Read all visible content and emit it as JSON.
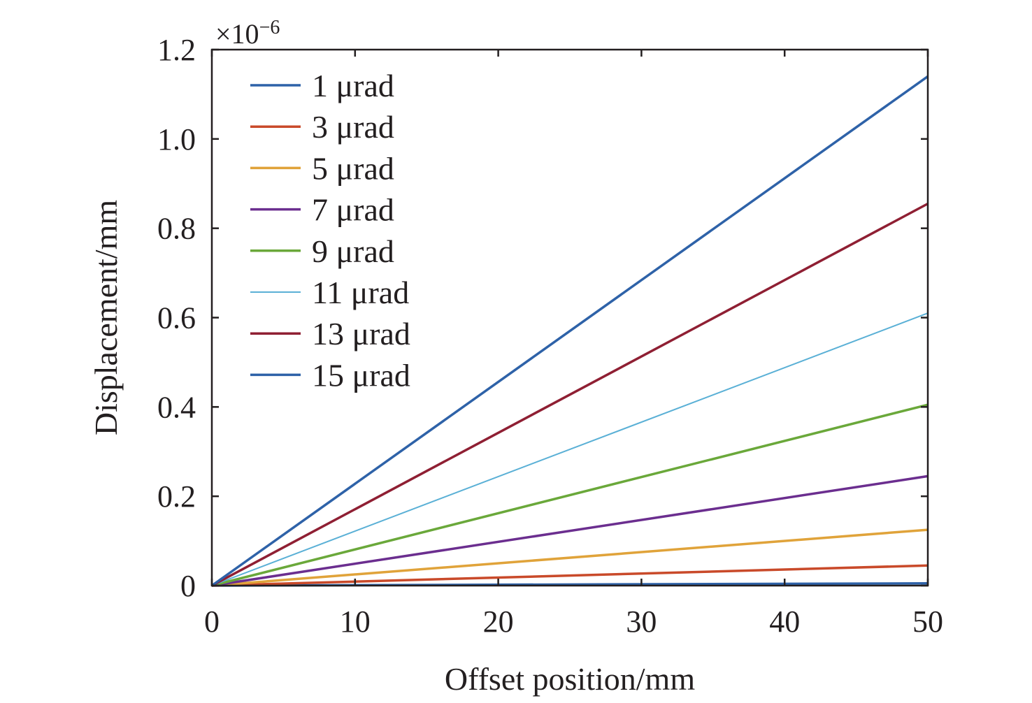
{
  "chart_data": {
    "type": "line",
    "title": "",
    "xlabel": "Offset position/mm",
    "ylabel": "Displacement/mm",
    "y_multiplier": "×10",
    "y_exponent": "−6",
    "xlim": [
      0,
      50
    ],
    "ylim": [
      0,
      1.2
    ],
    "x_ticks": [
      "0",
      "10",
      "20",
      "30",
      "40",
      "50"
    ],
    "y_ticks": [
      "0",
      "0.2",
      "0.4",
      "0.6",
      "0.8",
      "1.0",
      "1.2"
    ],
    "grid": false,
    "legend_position": "top-left",
    "x": [
      0,
      50
    ],
    "series": [
      {
        "name": "1 μrad",
        "color": "#2e62a8",
        "values": [
          0,
          0.005
        ]
      },
      {
        "name": "3 μrad",
        "color": "#c94a2a",
        "values": [
          0,
          0.045
        ]
      },
      {
        "name": "5 μrad",
        "color": "#e0a33a",
        "values": [
          0,
          0.125
        ]
      },
      {
        "name": "7 μrad",
        "color": "#6b2e8f",
        "values": [
          0,
          0.245
        ]
      },
      {
        "name": "9 μrad",
        "color": "#6aa83a",
        "values": [
          0,
          0.405
        ]
      },
      {
        "name": "11 μrad",
        "color": "#5ab0d6",
        "values": [
          0,
          0.61
        ]
      },
      {
        "name": "13 μrad",
        "color": "#8f1f33",
        "values": [
          0,
          0.855
        ]
      },
      {
        "name": "15 μrad",
        "color": "#2e62a8",
        "values": [
          0,
          1.14
        ]
      }
    ]
  }
}
